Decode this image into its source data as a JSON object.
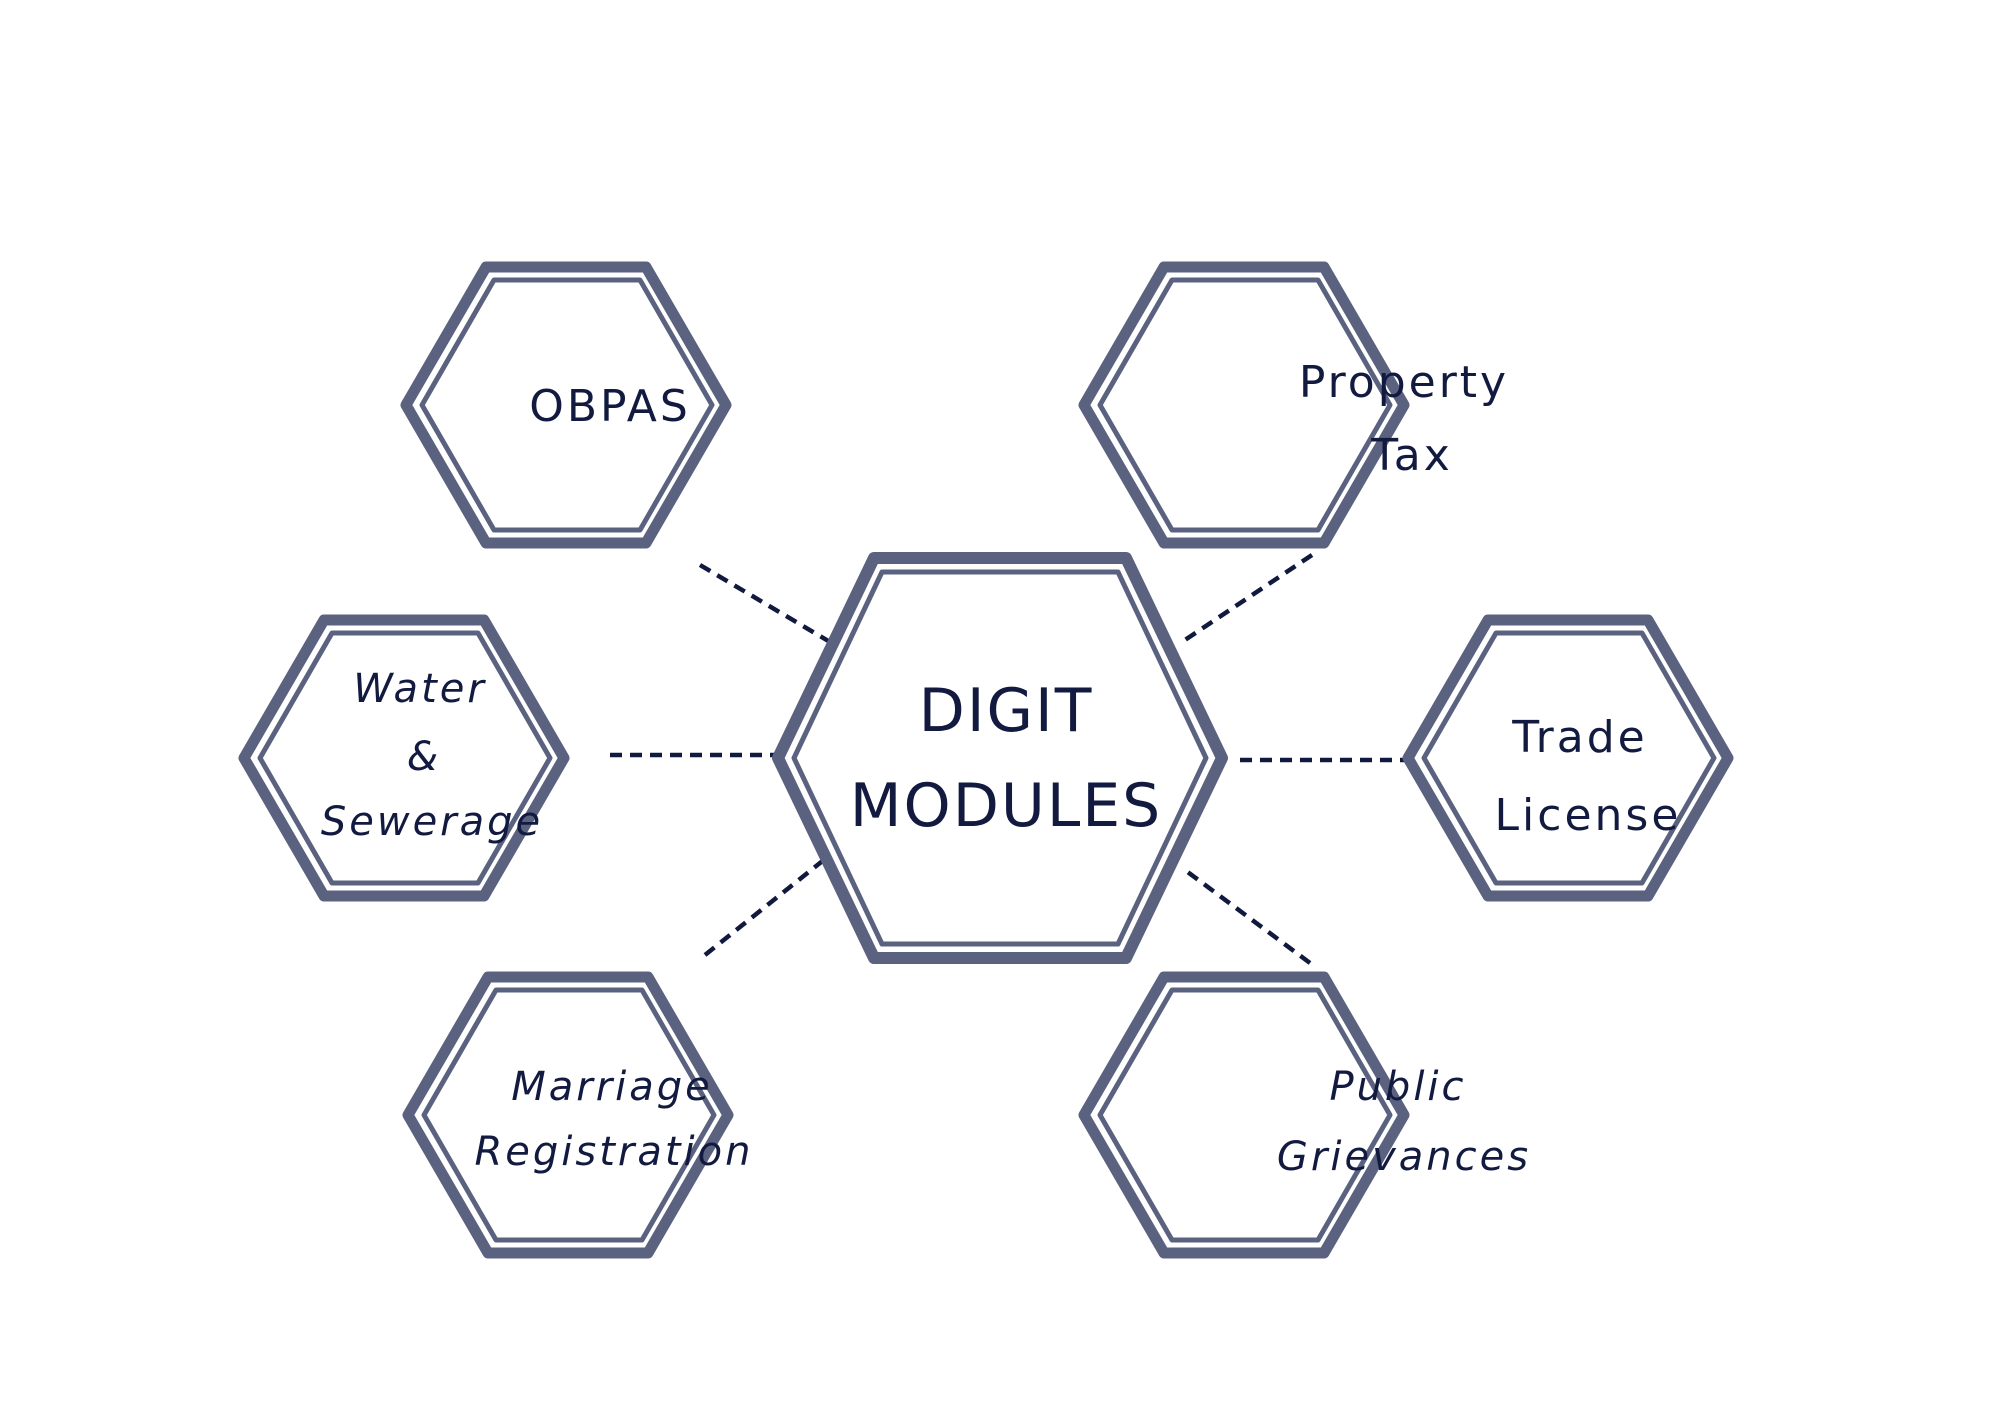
{
  "center": {
    "line1": "DIGIT",
    "line2": "MODULES"
  },
  "modules": {
    "obpas": {
      "line1": "OBPAS"
    },
    "property_tax": {
      "line1": "Property",
      "line2": "Tax"
    },
    "water_sewerage": {
      "line1": "Water",
      "line2": "&",
      "line3": "Sewerage"
    },
    "trade_license": {
      "line1": "Trade",
      "line2": "License"
    },
    "marriage_registration": {
      "line1": "Marriage",
      "line2": "Registration"
    },
    "public_grievances": {
      "line1": "Public",
      "line2": "Grievances"
    }
  },
  "colors": {
    "hex_stroke": "#5b6280",
    "text": "#121a40",
    "connector": "#111a3e",
    "background": "#ffffff"
  }
}
